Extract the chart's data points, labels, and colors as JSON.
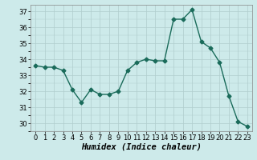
{
  "x": [
    0,
    1,
    2,
    3,
    4,
    5,
    6,
    7,
    8,
    9,
    10,
    11,
    12,
    13,
    14,
    15,
    16,
    17,
    18,
    19,
    20,
    21,
    22,
    23
  ],
  "y": [
    33.6,
    33.5,
    33.5,
    33.3,
    32.1,
    31.3,
    32.1,
    31.8,
    31.8,
    32.0,
    33.3,
    33.8,
    34.0,
    33.9,
    33.9,
    36.5,
    36.5,
    37.1,
    35.1,
    34.7,
    33.8,
    31.7,
    30.1,
    29.8
  ],
  "line_color": "#1a6b5a",
  "marker": "D",
  "markersize": 2.5,
  "linewidth": 1.0,
  "background_color": "#cdeaea",
  "grid_color": "#b0cdcd",
  "xlabel": "Humidex (Indice chaleur)",
  "ylim": [
    29.5,
    37.4
  ],
  "yticks": [
    30,
    31,
    32,
    33,
    34,
    35,
    36,
    37
  ],
  "xticks": [
    0,
    1,
    2,
    3,
    4,
    5,
    6,
    7,
    8,
    9,
    10,
    11,
    12,
    13,
    14,
    15,
    16,
    17,
    18,
    19,
    20,
    21,
    22,
    23
  ],
  "tick_fontsize": 6,
  "xlabel_fontsize": 7.5
}
